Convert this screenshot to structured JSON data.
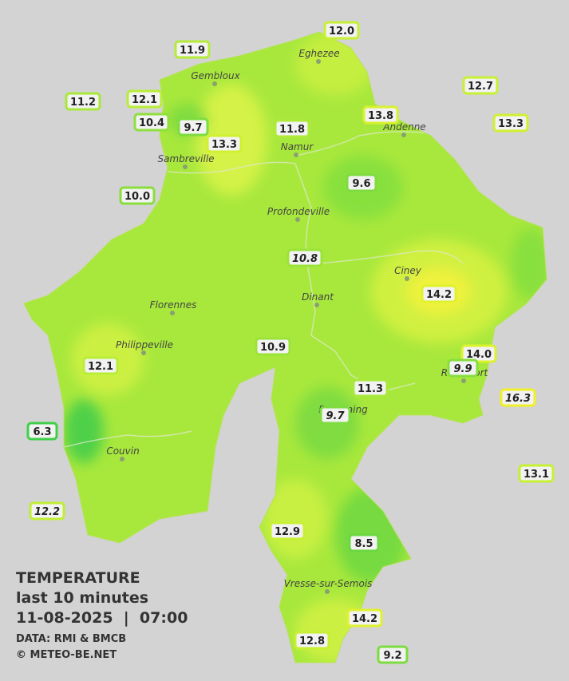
{
  "title": {
    "heading": "TEMPERATURE",
    "period": "last 10 minutes",
    "datetime": "11-08-2025  |  07:00",
    "source": "DATA: RMI & BMCB",
    "credit": "© METEO-BE.NET"
  },
  "towns": [
    "Eghezee",
    "Gembloux",
    "Andenne",
    "Namur",
    "Sambreville",
    "Profondeville",
    "Ciney",
    "Florennes",
    "Dinant",
    "Philippeville",
    "Beauraing",
    "Rochefort",
    "Couvin",
    "Vresse-sur-Semois"
  ],
  "stations": [
    {
      "value": "12.0",
      "color": "#c8f032",
      "italic": false
    },
    {
      "value": "11.9",
      "color": "#b4ec38",
      "italic": false
    },
    {
      "value": "12.7",
      "color": "#c8f032",
      "italic": false
    },
    {
      "value": "11.2",
      "color": "#a8e83a",
      "italic": false
    },
    {
      "value": "12.1",
      "color": "#b8ee36",
      "italic": false
    },
    {
      "value": "13.8",
      "color": "#d8f22e",
      "italic": false
    },
    {
      "value": "13.3",
      "color": "#d0f030",
      "italic": false
    },
    {
      "value": "10.4",
      "color": "#90e03c",
      "italic": false
    },
    {
      "value": "9.7",
      "color": "#7edc40",
      "italic": false
    },
    {
      "value": "11.8",
      "color": "#b0ea38",
      "italic": false
    },
    {
      "value": "13.3",
      "color": "#d0f030",
      "italic": false
    },
    {
      "value": "10.0",
      "color": "#8ade3c",
      "italic": false
    },
    {
      "value": "9.6",
      "color": "#7edc40",
      "italic": false
    },
    {
      "value": "10.8",
      "color": "#9ae43a",
      "italic": true
    },
    {
      "value": "14.2",
      "color": "#e0f22c",
      "italic": false
    },
    {
      "value": "10.9",
      "color": "#9ae43a",
      "italic": false
    },
    {
      "value": "14.0",
      "color": "#dcf22c",
      "italic": false
    },
    {
      "value": "9.9",
      "color": "#86de3e",
      "italic": true
    },
    {
      "value": "12.1",
      "color": "#b8ee36",
      "italic": false
    },
    {
      "value": "11.3",
      "color": "#a8e83a",
      "italic": false
    },
    {
      "value": "16.3",
      "color": "#f0f028",
      "italic": true
    },
    {
      "value": "9.7",
      "color": "#7edc40",
      "italic": true
    },
    {
      "value": "6.3",
      "color": "#40d048",
      "italic": false
    },
    {
      "value": "13.1",
      "color": "#c8f032",
      "italic": false
    },
    {
      "value": "12.2",
      "color": "#c0ee34",
      "italic": true
    },
    {
      "value": "12.9",
      "color": "#c8f032",
      "italic": false
    },
    {
      "value": "8.5",
      "color": "#6cd842",
      "italic": false
    },
    {
      "value": "14.2",
      "color": "#e0f22c",
      "italic": false
    },
    {
      "value": "12.8",
      "color": "#c8f032",
      "italic": false
    },
    {
      "value": "9.2",
      "color": "#7edc40",
      "italic": false
    }
  ]
}
